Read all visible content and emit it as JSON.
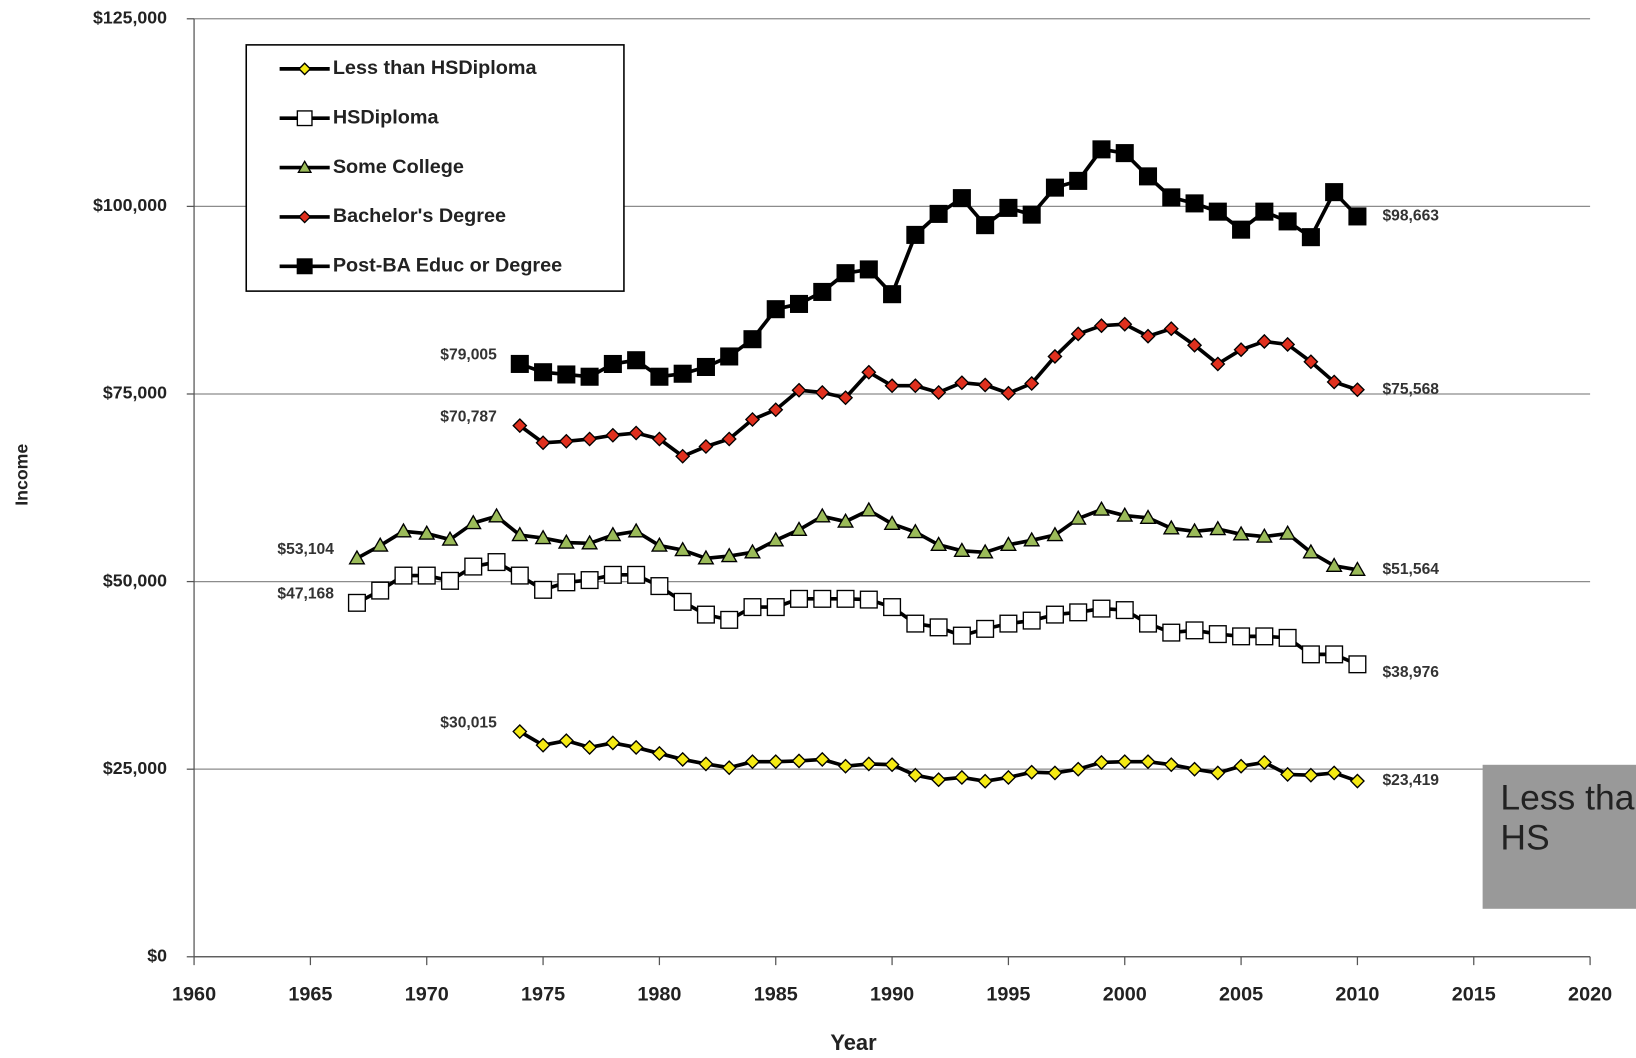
{
  "chart_data": {
    "type": "line",
    "x_label": "Year",
    "y_label": "Income",
    "xlim": [
      1960,
      2020
    ],
    "xticks": [
      1960,
      1965,
      1970,
      1975,
      1980,
      1985,
      1990,
      1995,
      2000,
      2005,
      2010,
      2015,
      2020
    ],
    "ylim": [
      0,
      125000
    ],
    "yticks": [
      {
        "value": 0,
        "label": "$0"
      },
      {
        "value": 25000,
        "label": "$25,000"
      },
      {
        "value": 50000,
        "label": "$50,000"
      },
      {
        "value": 75000,
        "label": "$75,000"
      },
      {
        "value": 100000,
        "label": "$100,000"
      },
      {
        "value": 125000,
        "label": "$125,000"
      }
    ],
    "grid": true,
    "legend": "upper left",
    "x": [
      1967,
      1968,
      1969,
      1970,
      1971,
      1972,
      1973,
      1974,
      1975,
      1976,
      1977,
      1978,
      1979,
      1980,
      1981,
      1982,
      1983,
      1984,
      1985,
      1986,
      1987,
      1988,
      1989,
      1990,
      1991,
      1992,
      1993,
      1994,
      1995,
      1996,
      1997,
      1998,
      1999,
      2000,
      2001,
      2002,
      2003,
      2004,
      2005,
      2006,
      2007,
      2008,
      2009,
      2010
    ],
    "series": [
      {
        "name": "Less than HSDiploma",
        "color": "#f5ea14",
        "marker": "diamond",
        "values": [
          null,
          null,
          null,
          null,
          null,
          null,
          null,
          30015,
          28200,
          28800,
          27900,
          28500,
          27900,
          27100,
          26300,
          25700,
          25200,
          26000,
          26000,
          26100,
          26300,
          25400,
          25700,
          25600,
          24200,
          23600,
          23900,
          23400,
          23900,
          24600,
          24500,
          25000,
          25900,
          26000,
          26000,
          25600,
          25000,
          24500,
          25400,
          25900,
          24300,
          24200,
          24500,
          23419
        ],
        "value_labels": [
          null,
          null,
          null,
          null,
          null,
          null,
          null,
          "$30,015",
          null,
          null,
          null,
          null,
          null,
          null,
          null,
          null,
          null,
          null,
          null,
          null,
          null,
          null,
          null,
          null,
          null,
          null,
          null,
          null,
          null,
          null,
          null,
          null,
          null,
          null,
          null,
          null,
          null,
          null,
          null,
          null,
          null,
          null,
          null,
          "$23,419"
        ]
      },
      {
        "name": "HSDiploma",
        "color": "#ffffff",
        "marker": "square",
        "values": [
          47168,
          48800,
          50800,
          50800,
          50100,
          52000,
          52600,
          50800,
          48900,
          49900,
          50200,
          50900,
          50900,
          49400,
          47300,
          45600,
          44900,
          46600,
          46600,
          47700,
          47700,
          47700,
          47600,
          46600,
          44400,
          43900,
          42800,
          43700,
          44400,
          44800,
          45600,
          45900,
          46400,
          46200,
          44400,
          43200,
          43500,
          43000,
          42700,
          42700,
          42500,
          40300,
          40300,
          38976
        ],
        "value_labels": [
          "$47,168",
          null,
          null,
          null,
          null,
          null,
          null,
          null,
          null,
          null,
          null,
          null,
          null,
          null,
          null,
          null,
          null,
          null,
          null,
          null,
          null,
          null,
          null,
          null,
          null,
          null,
          null,
          null,
          null,
          null,
          null,
          null,
          null,
          null,
          null,
          null,
          null,
          null,
          null,
          null,
          null,
          null,
          null,
          "$38,976"
        ]
      },
      {
        "name": "Some College",
        "color": "#9bbb59",
        "marker": "triangle",
        "values": [
          53104,
          54800,
          56700,
          56400,
          55600,
          57800,
          58700,
          56200,
          55800,
          55200,
          55100,
          56200,
          56700,
          54800,
          54200,
          53100,
          53400,
          53900,
          55500,
          56900,
          58700,
          58000,
          59500,
          57700,
          56600,
          54900,
          54100,
          53900,
          54900,
          55500,
          56200,
          58400,
          59600,
          58800,
          58500,
          57100,
          56700,
          57000,
          56300,
          56000,
          56400,
          53900,
          52100,
          51564
        ],
        "value_labels": [
          "$53,104",
          null,
          null,
          null,
          null,
          null,
          null,
          null,
          null,
          null,
          null,
          null,
          null,
          null,
          null,
          null,
          null,
          null,
          null,
          null,
          null,
          null,
          null,
          null,
          null,
          null,
          null,
          null,
          null,
          null,
          null,
          null,
          null,
          null,
          null,
          null,
          null,
          null,
          null,
          null,
          null,
          null,
          null,
          "$51,564"
        ]
      },
      {
        "name": "Bachelor's Degree",
        "color": "#e0301e",
        "marker": "diamond",
        "values": [
          null,
          null,
          null,
          null,
          null,
          null,
          null,
          70787,
          68500,
          68700,
          69000,
          69500,
          69800,
          69000,
          66700,
          68000,
          69000,
          71600,
          72900,
          75500,
          75200,
          74500,
          77900,
          76100,
          76100,
          75200,
          76500,
          76200,
          75100,
          76400,
          80000,
          83000,
          84100,
          84300,
          82700,
          83700,
          81500,
          79000,
          80900,
          82000,
          81600,
          79300,
          76600,
          75568
        ],
        "value_labels": [
          null,
          null,
          null,
          null,
          null,
          null,
          null,
          "$70,787",
          null,
          null,
          null,
          null,
          null,
          null,
          null,
          null,
          null,
          null,
          null,
          null,
          null,
          null,
          null,
          null,
          null,
          null,
          null,
          null,
          null,
          null,
          null,
          null,
          null,
          null,
          null,
          null,
          null,
          null,
          null,
          null,
          null,
          null,
          null,
          "$75,568"
        ]
      },
      {
        "name": "Post-BA Educ or Degree",
        "color": "#000000",
        "marker": "square",
        "values": [
          null,
          null,
          null,
          null,
          null,
          null,
          null,
          79005,
          77900,
          77600,
          77300,
          79000,
          79500,
          77300,
          77700,
          78600,
          80000,
          82300,
          86300,
          87000,
          88600,
          91100,
          91600,
          88300,
          96200,
          99000,
          101100,
          97500,
          99800,
          98900,
          102500,
          103400,
          107600,
          107100,
          104000,
          101200,
          100400,
          99300,
          96900,
          99300,
          98000,
          95900,
          101900,
          98663
        ],
        "value_labels": [
          null,
          null,
          null,
          null,
          null,
          null,
          null,
          "$79,005",
          null,
          null,
          null,
          null,
          null,
          null,
          null,
          null,
          null,
          null,
          null,
          null,
          null,
          null,
          null,
          null,
          null,
          null,
          null,
          null,
          null,
          null,
          null,
          null,
          null,
          null,
          null,
          null,
          null,
          null,
          null,
          null,
          null,
          null,
          null,
          "$98,663"
        ]
      }
    ],
    "overlay_label": "Less than HS"
  }
}
